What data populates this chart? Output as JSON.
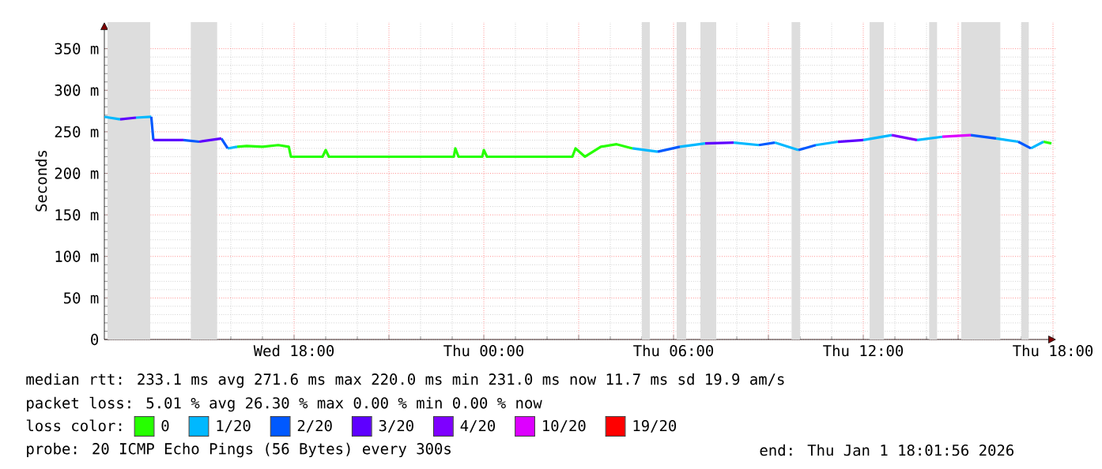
{
  "chart_data": {
    "type": "line",
    "ylabel": "Seconds",
    "legend_title": "loss color:",
    "legend": "bottom",
    "grid": true,
    "xlim": [
      "2025-12-31T12:00",
      "2026-01-01T18:06"
    ],
    "ylim": [
      0,
      382
    ],
    "xticks": [
      {
        "value": "2025-12-31T15:00",
        "label": null
      },
      {
        "value": "2025-12-31T18:00",
        "label": "Wed 18:00"
      },
      {
        "value": "2025-12-31T21:00",
        "label": null
      },
      {
        "value": "2026-01-01T00:00",
        "label": "Thu 00:00"
      },
      {
        "value": "2026-01-01T03:00",
        "label": null
      },
      {
        "value": "2026-01-01T06:00",
        "label": "Thu 06:00"
      },
      {
        "value": "2026-01-01T09:00",
        "label": null
      },
      {
        "value": "2026-01-01T12:00",
        "label": "Thu 12:00"
      },
      {
        "value": "2026-01-01T15:00",
        "label": null
      },
      {
        "value": "2026-01-01T18:00",
        "label": "Thu 18:00"
      }
    ],
    "yticks": [
      0,
      {
        "value": 50,
        "label": "50 m"
      },
      {
        "value": 100,
        "label": "100 m"
      },
      {
        "value": 150,
        "label": "150 m"
      },
      {
        "value": 200,
        "label": "200 m"
      },
      {
        "value": 250,
        "label": "250 m"
      },
      {
        "value": 300,
        "label": "300 m"
      },
      {
        "value": 350,
        "label": "350 m"
      }
    ],
    "series": [
      {
        "name": "0",
        "color": "#26ff00",
        "x": [
          "2025-12-31T16:12",
          "2025-12-31T16:30",
          "2025-12-31T17:00",
          "2025-12-31T17:30",
          "2025-12-31T17:50",
          "2025-12-31T17:54",
          "2025-12-31T18:54",
          "2025-12-31T19:00",
          "2025-12-31T19:06",
          "2025-12-31T23:03",
          "2025-12-31T23:06",
          "2025-12-31T23:12",
          "2025-12-31T23:57",
          "2026-01-01T00:00",
          "2026-01-01T00:06",
          "2026-01-01T02:48",
          "2026-01-01T02:54",
          "2026-01-01T03:12",
          "2026-01-01T03:42",
          "2026-01-01T04:12",
          "2026-01-01T04:42",
          null,
          "2026-01-01T17:42",
          "2026-01-01T17:57"
        ],
        "values": [
          232,
          233,
          232,
          234,
          232,
          220,
          220,
          228,
          220,
          220,
          230,
          220,
          220,
          228,
          220,
          220,
          230,
          220,
          232,
          235,
          230,
          null,
          238,
          236
        ]
      },
      {
        "name": "1/20",
        "color": "#00b8ff",
        "x": [
          "2025-12-31T12:00",
          "2025-12-31T12:30",
          null,
          "2025-12-31T13:00",
          "2025-12-31T13:29",
          null,
          "2025-12-31T15:54",
          "2025-12-31T16:12",
          null,
          "2026-01-01T04:42",
          "2026-01-01T05:30",
          null,
          "2026-01-01T06:12",
          "2026-01-01T07:00",
          null,
          "2026-01-01T07:54",
          "2026-01-01T08:42",
          null,
          "2026-01-01T09:12",
          "2026-01-01T09:57",
          null,
          "2026-01-01T10:30",
          "2026-01-01T11:12",
          null,
          "2026-01-01T12:00",
          "2026-01-01T12:54",
          null,
          "2026-01-01T13:42",
          "2026-01-01T14:30",
          null,
          "2026-01-01T16:12",
          "2026-01-01T16:54",
          null,
          "2026-01-01T17:18",
          "2026-01-01T17:42"
        ],
        "values": [
          268,
          265,
          null,
          267,
          268,
          null,
          230,
          232,
          null,
          230,
          226,
          null,
          232,
          236,
          null,
          237,
          234,
          null,
          237,
          228,
          null,
          234,
          238,
          null,
          240,
          246,
          null,
          240,
          244,
          null,
          242,
          238,
          null,
          230,
          238
        ]
      },
      {
        "name": "2/20",
        "color": "#0059ff",
        "x": [
          "2025-12-31T13:29",
          "2025-12-31T13:33",
          null,
          "2025-12-31T14:30",
          "2025-12-31T15:00",
          null,
          "2025-12-31T15:42",
          "2025-12-31T15:54",
          null,
          "2026-01-01T05:30",
          "2026-01-01T06:12",
          null,
          "2026-01-01T08:42",
          "2026-01-01T09:12",
          null,
          "2026-01-01T09:57",
          "2026-01-01T10:30",
          null,
          "2026-01-01T15:24",
          "2026-01-01T16:12",
          null,
          "2026-01-01T16:54",
          "2026-01-01T17:18"
        ],
        "values": [
          268,
          240,
          null,
          240,
          238,
          null,
          242,
          230,
          null,
          226,
          232,
          null,
          234,
          237,
          null,
          228,
          234,
          null,
          246,
          242,
          null,
          238,
          230
        ]
      },
      {
        "name": "3/20",
        "color": "#5e00ff",
        "x": [
          "2025-12-31T12:30",
          "2025-12-31T13:00",
          null,
          "2025-12-31T13:33",
          "2025-12-31T14:30",
          null,
          "2025-12-31T15:00",
          "2025-12-31T15:42",
          null,
          "2026-01-01T07:00",
          "2026-01-01T07:54",
          null,
          "2026-01-01T11:12",
          "2026-01-01T12:00"
        ],
        "values": [
          265,
          267,
          null,
          240,
          240,
          null,
          238,
          242,
          null,
          236,
          237,
          null,
          238,
          240
        ]
      },
      {
        "name": "4/20",
        "color": "#7e00ff",
        "x": [
          "2026-01-01T12:54",
          "2026-01-01T13:42"
        ],
        "values": [
          246,
          240
        ]
      },
      {
        "name": "10/20",
        "color": "#dd00ff",
        "x": [
          "2026-01-01T14:30",
          "2026-01-01T15:24"
        ],
        "values": [
          244,
          246
        ]
      },
      {
        "name": "19/20",
        "color": "#ff0000"
      }
    ],
    "bands": [
      {
        "axis": "x",
        "from": "2025-12-31T12:06",
        "to": "2025-12-31T13:27",
        "color": "#dddddd"
      },
      {
        "axis": "x",
        "from": "2025-12-31T14:44",
        "to": "2025-12-31T15:34",
        "color": "#dddddd"
      },
      {
        "axis": "x",
        "from": "2026-01-01T05:00",
        "to": "2026-01-01T05:15",
        "color": "#dddddd"
      },
      {
        "axis": "x",
        "from": "2026-01-01T06:06",
        "to": "2026-01-01T06:24",
        "color": "#dddddd"
      },
      {
        "axis": "x",
        "from": "2026-01-01T06:51",
        "to": "2026-01-01T07:21",
        "color": "#dddddd"
      },
      {
        "axis": "x",
        "from": "2026-01-01T09:44",
        "to": "2026-01-01T10:00",
        "color": "#dddddd"
      },
      {
        "axis": "x",
        "from": "2026-01-01T12:12",
        "to": "2026-01-01T12:39",
        "color": "#dddddd"
      },
      {
        "axis": "x",
        "from": "2026-01-01T14:05",
        "to": "2026-01-01T14:20",
        "color": "#dddddd"
      },
      {
        "axis": "x",
        "from": "2026-01-01T15:06",
        "to": "2026-01-01T16:20",
        "color": "#dddddd"
      },
      {
        "axis": "x",
        "from": "2026-01-01T17:00",
        "to": "2026-01-01T17:14",
        "color": "#dddddd"
      }
    ],
    "annotations": [
      "median rtt:  233.1 ms avg  271.6 ms max  220.0 ms min  231.0 ms now  11.7 ms sd  19.9   am/s",
      "packet loss: 5.01 % avg  26.30 % max  0.00 % min  0.00 % now",
      "probe:       20 ICMP Echo Pings (56 Bytes) every 300s",
      "end: Thu Jan  1 18:01:56 2026"
    ]
  }
}
